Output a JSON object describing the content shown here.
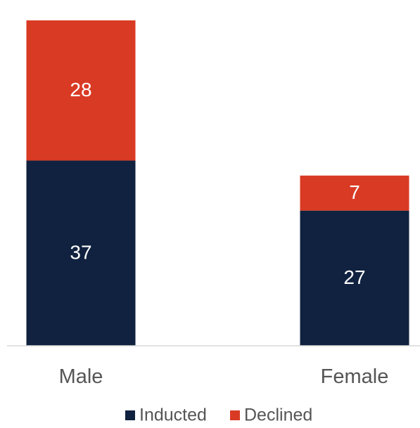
{
  "chart_data": {
    "type": "bar",
    "stacked": true,
    "categories": [
      "Male",
      "Female"
    ],
    "series": [
      {
        "name": "Inducted",
        "values": [
          37,
          27
        ],
        "color": "#10223f"
      },
      {
        "name": "Declined",
        "values": [
          28,
          7
        ],
        "color": "#d93a24"
      }
    ],
    "title": "",
    "xlabel": "",
    "ylabel": "",
    "ylim": [
      0,
      65
    ],
    "grid": false,
    "legend": "bottom-center",
    "data_labels": true
  }
}
